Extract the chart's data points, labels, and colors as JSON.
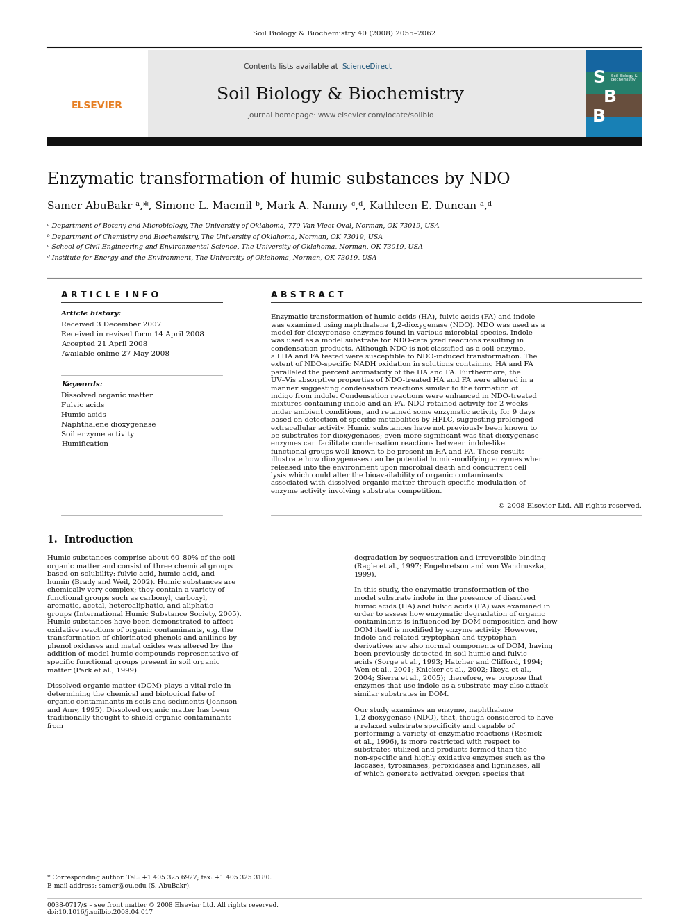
{
  "page_width": 9.92,
  "page_height": 13.23,
  "bg_color": "#ffffff",
  "journal_ref": "Soil Biology & Biochemistry 40 (2008) 2055–2062",
  "journal_name": "Soil Biology & Biochemistry",
  "journal_homepage": "journal homepage: www.elsevier.com/locate/soilbio",
  "sciencedirect_color": "#1a5276",
  "elsevier_color": "#e67e22",
  "header_bg": "#e8e8e8",
  "paper_title": "Enzymatic transformation of humic substances by NDO",
  "authors": "Samer AbuBakr ᵃ,*, Simone L. Macmil ᵇ, Mark A. Nanny ᶜ,ᵈ, Kathleen E. Duncan ᵃ,ᵈ",
  "affil_a": "ᵃ Department of Botany and Microbiology, The University of Oklahoma, 770 Van Vleet Oval, Norman, OK 73019, USA",
  "affil_b": "ᵇ Department of Chemistry and Biochemistry, The University of Oklahoma, Norman, OK 73019, USA",
  "affil_c": "ᶜ School of Civil Engineering and Environmental Science, The University of Oklahoma, Norman, OK 73019, USA",
  "affil_d": "ᵈ Institute for Energy and the Environment, The University of Oklahoma, Norman, OK 73019, USA",
  "article_info_title": "A R T I C L E  I N F O",
  "abstract_title": "A B S T R A C T",
  "article_history_label": "Article history:",
  "received1": "Received 3 December 2007",
  "received2": "Received in revised form 14 April 2008",
  "accepted": "Accepted 21 April 2008",
  "available": "Available online 27 May 2008",
  "keywords_label": "Keywords:",
  "keywords": [
    "Dissolved organic matter",
    "Fulvic acids",
    "Humic acids",
    "Naphthalene dioxygenase",
    "Soil enzyme activity",
    "Humification"
  ],
  "abstract_text": "Enzymatic transformation of humic acids (HA), fulvic acids (FA) and indole was examined using naphthalene 1,2-dioxygenase (NDO). NDO was used as a model for dioxygenase enzymes found in various microbial species. Indole was used as a model substrate for NDO-catalyzed reactions resulting in condensation products. Although NDO is not classified as a soil enzyme, all HA and FA tested were susceptible to NDO-induced transformation. The extent of NDO-specific NADH oxidation in solutions containing HA and FA paralleled the percent aromaticity of the HA and FA. Furthermore, the UV–Vis absorptive properties of NDO-treated HA and FA were altered in a manner suggesting condensation reactions similar to the formation of indigo from indole. Condensation reactions were enhanced in NDO-treated mixtures containing indole and an FA. NDO retained activity for 2 weeks under ambient conditions, and retained some enzymatic activity for 9 days based on detection of specific metabolites by HPLC, suggesting prolonged extracellular activity. Humic substances have not previously been known to be substrates for dioxygenases; even more significant was that dioxygenase enzymes can facilitate condensation reactions between indole-like functional groups well-known to be present in HA and FA. These results illustrate how dioxygenases can be potential humic-modifying enzymes when released into the environment upon microbial death and concurrent cell lysis which could alter the bioavailability of organic contaminants associated with dissolved organic matter through specific modulation of enzyme activity involving substrate competition.",
  "copyright": "© 2008 Elsevier Ltd. All rights reserved.",
  "section1_title": "1.  Introduction",
  "intro_col1": "Humic substances comprise about 60–80% of the soil organic matter and consist of three chemical groups based on solubility: fulvic acid, humic acid, and humin (Brady and Weil, 2002). Humic substances are chemically very complex; they contain a variety of functional groups such as carbonyl, carboxyl, aromatic, acetal, heteroaliphatic, and aliphatic groups (International Humic Substance Society, 2005). Humic substances have been demonstrated to affect oxidative reactions of organic contaminants, e.g. the transformation of chlorinated phenols and anilines by phenol oxidases and metal oxides was altered by the addition of model humic compounds representative of specific functional groups present in soil organic matter (Park et al., 1999).\n\nDissolved organic matter (DOM) plays a vital role in determining the chemical and biological fate of organic contaminants in soils and sediments (Johnson and Amy, 1995). Dissolved organic matter has been traditionally thought to shield organic contaminants from",
  "intro_col2": "degradation by sequestration and irreversible binding (Ragle et al., 1997; Engebretson and von Wandruszka, 1999).\n\nIn this study, the enzymatic transformation of the model substrate indole in the presence of dissolved humic acids (HA) and fulvic acids (FA) was examined in order to assess how enzymatic degradation of organic contaminants is influenced by DOM composition and how DOM itself is modified by enzyme activity. However, indole and related tryptophan and tryptophan derivatives are also normal components of DOM, having been previously detected in soil humic and fulvic acids (Sorge et al., 1993; Hatcher and Clifford, 1994; Wen et al., 2001; Knicker et al., 2002; Ikeya et al., 2004; Sierra et al., 2005); therefore, we propose that enzymes that use indole as a substrate may also attack similar substrates in DOM.\n\nOur study examines an enzyme, naphthalene 1,2-dioxygenase (NDO), that, though considered to have a relaxed substrate specificity and capable of performing a variety of enzymatic reactions (Resnick et al., 1996), is more restricted with respect to substrates utilized and products formed than the non-specific and highly oxidative enzymes such as the laccases, tyrosinases, peroxidases and ligninases, all of which generate activated oxygen species that",
  "footnote_star": "* Corresponding author. Tel.: +1 405 325 6927; fax: +1 405 325 3180.",
  "footnote_email": "E-mail address: samer@ou.edu (S. AbuBakr).",
  "footer1": "0038-0717/$ – see front matter © 2008 Elsevier Ltd. All rights reserved.",
  "footer2": "doi:10.1016/j.soilbio.2008.04.017"
}
